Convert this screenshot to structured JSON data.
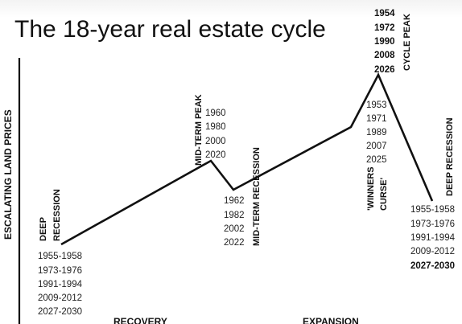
{
  "title": "The 18-year real estate cycle",
  "y_axis_label": "ESCALATING LAND PRICES",
  "phases": {
    "recovery": "RECOVERY",
    "expansion": "EXPANSION"
  },
  "points": {
    "deep_recession_start": {
      "label_line1": "DEEP",
      "label_line2": "RECESSION",
      "years": [
        "1955-1958",
        "1973-1976",
        "1991-1994",
        "2009-2012",
        "2027-2030"
      ]
    },
    "mid_term_peak": {
      "label": "MID-TERM PEAK",
      "years": [
        "1960",
        "1980",
        "2000",
        "2020"
      ]
    },
    "mid_term_recession": {
      "label": "MID-TERM RECESSION",
      "years": [
        "1962",
        "1982",
        "2002",
        "2022"
      ]
    },
    "winners_curse": {
      "label_line1": "'WINNERS",
      "label_line2": "CURSE'",
      "years": [
        "1953",
        "1971",
        "1989",
        "2007",
        "2025"
      ]
    },
    "cycle_peak": {
      "label": "CYCLE PEAK",
      "years": [
        "1954",
        "1972",
        "1990",
        "2008",
        "2026"
      ]
    },
    "deep_recession_end": {
      "label": "DEEP RECESSION",
      "years": [
        "1955-1958",
        "1973-1976",
        "1991-1994",
        "2009-2012"
      ],
      "highlight_year": "2027-2030"
    }
  },
  "colors": {
    "line": "#111111",
    "text": "#111111"
  }
}
